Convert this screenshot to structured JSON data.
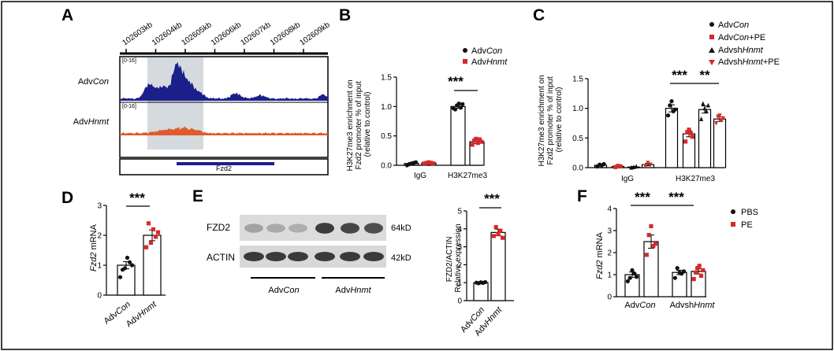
{
  "panels": {
    "A": "A",
    "B": "B",
    "C": "C",
    "D": "D",
    "E": "E",
    "F": "F"
  },
  "colors": {
    "black": "#111111",
    "red": "#d42a2a",
    "orange": "#e05a2b",
    "navy": "#1b1f8c",
    "shade": "#d5dadf"
  },
  "panel_a": {
    "kb_labels": [
      "102603kb",
      "102604kb",
      "102605kb",
      "102606kb",
      "102607kb",
      "102608kb",
      "102609kb"
    ],
    "track_range": "[0-16]",
    "track1": {
      "prefix": "Adv",
      "italic": "Con"
    },
    "track2": {
      "prefix": "Adv",
      "italic": "Hnmt"
    },
    "gene": "Fzd2"
  },
  "panel_b": {
    "ylabel_lines": [
      "H3K27me3 enrichment on",
      "Fzd2 promoter % of input",
      "(relative to control)"
    ],
    "sig": "***",
    "legend": [
      {
        "prefix": "Adv",
        "italic": "Con"
      },
      {
        "prefix": "Adv",
        "italic": "Hnmt"
      }
    ]
  },
  "panel_c": {
    "ylabel_lines": [
      "H3K27me3 enrichment on",
      "Fzd2 promoter % of input",
      "(relative to control)"
    ],
    "sig1": "***",
    "sig2": "**",
    "legend": [
      {
        "prefix": "Adv",
        "italic": "Con",
        "suffix": ""
      },
      {
        "prefix": "Adv",
        "italic": "Con",
        "suffix": "+PE"
      },
      {
        "prefix": "Advsh",
        "italic": "Hnmt",
        "suffix": ""
      },
      {
        "prefix": "Advsh",
        "italic": "Hnmt",
        "suffix": "+PE"
      }
    ]
  },
  "panel_d": {
    "ylabel_italic": "Fzd2",
    "ylabel_rest": " mRNA",
    "sig": "***",
    "xticks": [
      {
        "prefix": "Adv",
        "italic": "Con"
      },
      {
        "prefix": "Adv",
        "italic": "Hnmt"
      }
    ]
  },
  "panel_e": {
    "blot_labels": [
      "FZD2",
      "ACTIN"
    ],
    "sizes": [
      "64kD",
      "42kD"
    ],
    "groups": [
      {
        "prefix": "Adv",
        "italic": "Con"
      },
      {
        "prefix": "Adv",
        "italic": "Hnmt"
      }
    ],
    "ylabel_lines": [
      "FZD2/ACTIN",
      "Relative expression"
    ],
    "sig": "***",
    "xticks": [
      {
        "prefix": "Adv",
        "italic": "Con"
      },
      {
        "prefix": "Adv",
        "italic": "Hnmt"
      }
    ]
  },
  "panel_f": {
    "ylabel_italic": "Fzd2",
    "ylabel_rest": " mRNA",
    "sig1": "***",
    "sig2": "***",
    "legend": [
      "PBS",
      "PE"
    ],
    "groups": [
      {
        "prefix": "Adv",
        "italic": "Con"
      },
      {
        "prefix": "Advsh",
        "italic": "Hnmt"
      }
    ]
  },
  "chart_data": [
    {
      "panel": "A",
      "type": "area",
      "description": "ChIP-seq coverage tracks",
      "x_range_kb": [
        102603,
        102609
      ]
    },
    {
      "panel": "B",
      "type": "bar",
      "categories": [
        "IgG",
        "H3K27me3"
      ],
      "ylim": [
        0,
        1.5
      ],
      "yticks": [
        0.0,
        0.5,
        1.0,
        1.5
      ],
      "series": [
        {
          "name": "AdvCon",
          "values": [
            0.03,
            1.0
          ],
          "errors": [
            0.01,
            0.03
          ],
          "points": [
            [
              0.0,
              0.02,
              0.03,
              0.04,
              0.05
            ],
            [
              0.97,
              0.95,
              1.02,
              1.05,
              0.98,
              1.04
            ]
          ]
        },
        {
          "name": "AdvHnmt",
          "values": [
            0.04,
            0.4
          ],
          "errors": [
            0.01,
            0.03
          ],
          "points": [
            [
              0.03,
              0.04,
              0.05,
              0.04,
              0.03
            ],
            [
              0.35,
              0.42,
              0.45,
              0.38,
              0.44,
              0.4
            ]
          ]
        }
      ]
    },
    {
      "panel": "C",
      "type": "bar",
      "categories": [
        "IgG",
        "H3K27me3"
      ],
      "ylim": [
        0,
        1.5
      ],
      "yticks": [
        0.0,
        0.5,
        1.0,
        1.5
      ],
      "series": [
        {
          "name": "AdvCon",
          "values": [
            0.04,
            1.0
          ],
          "errors": [
            0.01,
            0.06
          ],
          "points": [
            [
              0.02,
              0.05,
              0.04,
              0.06
            ],
            [
              0.88,
              1.05,
              1.12,
              0.95,
              0.98
            ]
          ]
        },
        {
          "name": "AdvCon+PE",
          "values": [
            0.02,
            0.57
          ],
          "errors": [
            0.01,
            0.05
          ],
          "points": [
            [
              0.01,
              0.03,
              0.02
            ],
            [
              0.44,
              0.6,
              0.64,
              0.58,
              0.52
            ]
          ]
        },
        {
          "name": "AdvshHnmt",
          "values": [
            0.01,
            0.98
          ],
          "errors": [
            0.01,
            0.06
          ],
          "points": [
            [
              0.0,
              0.01,
              0.02
            ],
            [
              0.82,
              1.08,
              1.0,
              0.95,
              1.05
            ]
          ]
        },
        {
          "name": "AdvshHnmt+PE",
          "values": [
            0.05,
            0.82
          ],
          "errors": [
            0.02,
            0.04
          ],
          "points": [
            [
              0.02,
              0.08,
              0.05
            ],
            [
              0.75,
              0.86,
              0.88,
              0.8,
              0.83
            ]
          ]
        }
      ]
    },
    {
      "panel": "D",
      "type": "bar",
      "categories": [
        "AdvCon",
        "AdvHnmt"
      ],
      "ylim": [
        0,
        3
      ],
      "yticks": [
        0,
        1,
        2,
        3
      ],
      "values": [
        1.0,
        2.0
      ],
      "errors": [
        0.12,
        0.18
      ],
      "points": [
        [
          0.6,
          0.85,
          0.9,
          1.25,
          1.1,
          1.0
        ],
        [
          1.6,
          2.4,
          1.75,
          2.2,
          1.95,
          2.1
        ]
      ]
    },
    {
      "panel": "E",
      "type": "bar",
      "categories": [
        "AdvCon",
        "AdvHnmt"
      ],
      "ylim": [
        0,
        5
      ],
      "yticks": [
        0,
        1,
        2,
        3,
        4,
        5
      ],
      "values": [
        1.0,
        3.8
      ],
      "errors": [
        0.02,
        0.18
      ],
      "points": [
        [
          1.0,
          0.97,
          1.02,
          0.99,
          1.03
        ],
        [
          3.6,
          4.1,
          3.7,
          3.9,
          3.5
        ]
      ]
    },
    {
      "panel": "F",
      "type": "bar",
      "categories": [
        "AdvCon",
        "AdvshHnmt"
      ],
      "ylim": [
        0,
        4
      ],
      "yticks": [
        0,
        1,
        2,
        3,
        4
      ],
      "series": [
        {
          "name": "PBS",
          "values": [
            1.0,
            1.1
          ],
          "errors": [
            0.12,
            0.1
          ],
          "points": [
            [
              0.7,
              0.85,
              1.2,
              1.05,
              0.9
            ],
            [
              0.85,
              1.3,
              1.1,
              1.05,
              1.15
            ]
          ]
        },
        {
          "name": "PE",
          "values": [
            2.5,
            1.15
          ],
          "errors": [
            0.3,
            0.12
          ],
          "points": [
            [
              1.9,
              2.8,
              3.2,
              2.3,
              2.4
            ],
            [
              0.8,
              1.1,
              1.3,
              1.4,
              0.95,
              1.2
            ]
          ]
        }
      ]
    }
  ]
}
